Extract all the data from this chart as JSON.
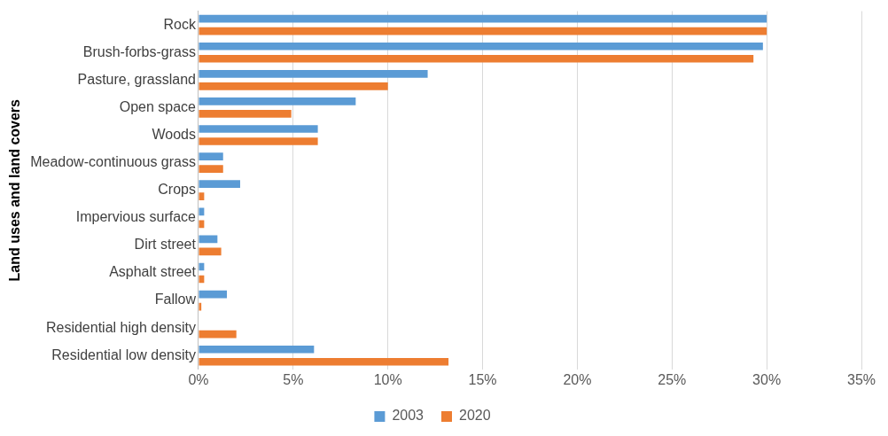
{
  "chart_data": {
    "type": "bar",
    "orientation": "horizontal",
    "ylabel": "Land uses and land covers",
    "categories": [
      "Rock",
      "Brush-forbs-grass",
      "Pasture, grassland",
      "Open space",
      "Woods",
      "Meadow-continuous grass",
      "Crops",
      "Impervious surface",
      "Dirt street",
      "Asphalt street",
      "Fallow",
      "Residential high density",
      "Residential low density"
    ],
    "series": [
      {
        "name": "2003",
        "color": "#5b9bd5",
        "values": [
          30.0,
          29.8,
          12.1,
          8.3,
          6.3,
          1.3,
          2.2,
          0.3,
          1.0,
          0.3,
          1.5,
          0,
          6.1
        ]
      },
      {
        "name": "2020",
        "color": "#ed7d31",
        "values": [
          30.0,
          29.3,
          10.0,
          4.9,
          6.3,
          1.3,
          0.3,
          0.3,
          1.2,
          0.3,
          0.15,
          2.0,
          13.2
        ]
      }
    ],
    "xlim": [
      0,
      35
    ],
    "xticks": [
      {
        "value": 0,
        "label": "0%"
      },
      {
        "value": 5,
        "label": "5%"
      },
      {
        "value": 10,
        "label": "10%"
      },
      {
        "value": 15,
        "label": "15%"
      },
      {
        "value": 20,
        "label": "20%"
      },
      {
        "value": 25,
        "label": "25%"
      },
      {
        "value": 30,
        "label": "30%"
      },
      {
        "value": 35,
        "label": "35%"
      }
    ],
    "grid": "x",
    "legend": "bottom"
  }
}
